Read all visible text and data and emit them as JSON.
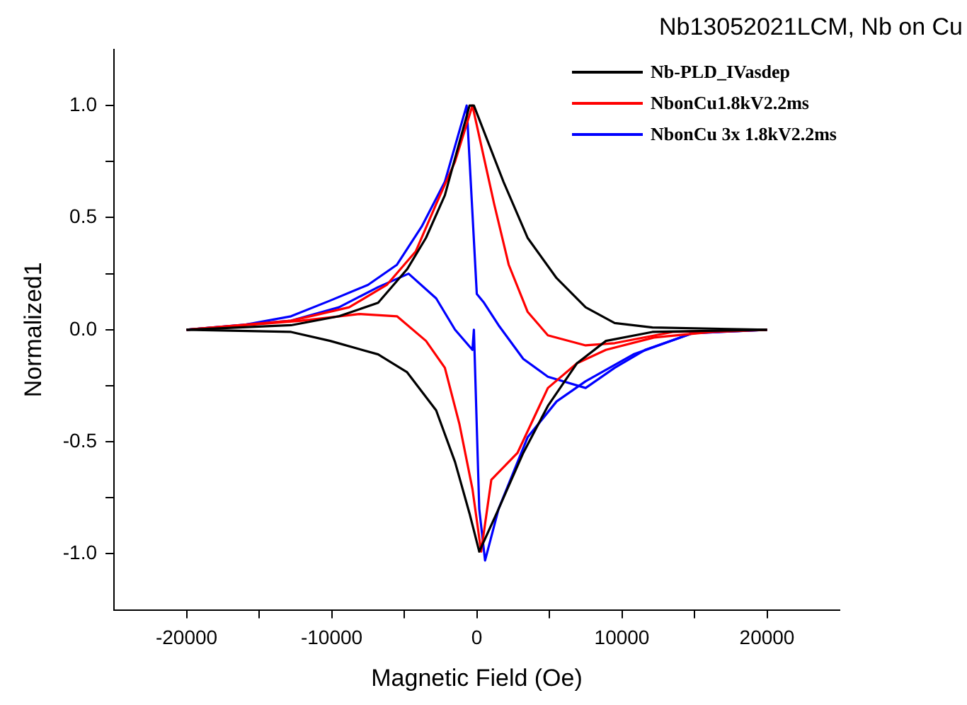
{
  "chart_data": {
    "type": "line",
    "title": "Nb13052021LCM, Nb on Cu",
    "xlabel": "Magnetic Field (Oe)",
    "ylabel": "Normalized1",
    "xlim": [
      -25000,
      25000
    ],
    "ylim": [
      -1.25,
      1.25
    ],
    "xticks": [
      -20000,
      {
        "value": -15000,
        "label": null
      },
      -10000,
      {
        "value": -5000,
        "label": null
      },
      0,
      {
        "value": 5000,
        "label": null
      },
      10000,
      {
        "value": 15000,
        "label": null
      },
      20000
    ],
    "yticks": [
      {
        "value": -1,
        "label": "-1.0"
      },
      {
        "value": -0.75,
        "label": null
      },
      {
        "value": -0.5,
        "label": "-0.5"
      },
      {
        "value": -0.25,
        "label": null
      },
      {
        "value": 0,
        "label": "0.0"
      },
      {
        "value": 0.25,
        "label": null
      },
      {
        "value": 0.5,
        "label": "0.5"
      },
      {
        "value": 0.75,
        "label": null
      },
      {
        "value": 1,
        "label": "1.0"
      }
    ],
    "grid": false,
    "legend": "top right",
    "marker": "none",
    "line_style": "solid",
    "series": [
      {
        "name": "Nb-PLD_IVasdep",
        "color": "#000000",
        "x": [
          -20000,
          -12800,
          -9500,
          -6800,
          -4800,
          -3500,
          -2200,
          -500,
          -200,
          1840,
          3500,
          5500,
          7500,
          9500,
          12100,
          20000
        ],
        "values": [
          0,
          0.02,
          0.06,
          0.12,
          0.27,
          0.41,
          0.6,
          1.0,
          1.0,
          0.66,
          0.41,
          0.23,
          0.1,
          0.03,
          0.01,
          0
        ]
      },
      {
        "color": "#000000",
        "x": [
          -20000,
          -12800,
          -10100,
          -6800,
          -4800,
          -2800,
          -1500,
          -500,
          170,
          1500,
          3200,
          4900,
          6900,
          8900,
          12100,
          20000
        ],
        "values": [
          0,
          -0.01,
          -0.05,
          -0.11,
          -0.19,
          -0.36,
          -0.59,
          -0.82,
          -0.99,
          -0.8,
          -0.55,
          -0.34,
          -0.15,
          -0.05,
          -0.01,
          0
        ]
      },
      {
        "name": "NbonCu1.8kV2.2ms",
        "color": "#ff0000",
        "x": [
          -20000,
          -12800,
          -8800,
          -6200,
          -4200,
          -2800,
          -1500,
          -300,
          1200,
          2200,
          3500,
          4900,
          7500,
          9500,
          13500,
          20000
        ],
        "values": [
          0,
          0.04,
          0.1,
          0.2,
          0.35,
          0.56,
          0.75,
          1.0,
          0.56,
          0.29,
          0.08,
          -0.025,
          -0.07,
          -0.06,
          -0.01,
          0
        ]
      },
      {
        "color": "#ff0000",
        "x": [
          -20000,
          -12100,
          -8100,
          -5500,
          -3500,
          -2200,
          -1200,
          -300,
          300,
          1000,
          2800,
          4900,
          6900,
          8900,
          12200,
          16200,
          20000
        ],
        "values": [
          0,
          0.04,
          0.07,
          0.06,
          -0.05,
          -0.17,
          -0.42,
          -0.71,
          -0.99,
          -0.67,
          -0.55,
          -0.26,
          -0.15,
          -0.09,
          -0.035,
          -0.01,
          0
        ]
      },
      {
        "name": "NbonCu 3x 1.8kV2.2ms",
        "color": "#0000ff",
        "x": [
          -20000,
          -16200,
          -12800,
          -10100,
          -7500,
          -5500,
          -3800,
          -2200,
          -700,
          0,
          500,
          1500,
          3200,
          4900,
          7500,
          9500,
          11600,
          14900,
          20000
        ],
        "values": [
          0,
          0.02,
          0.06,
          0.13,
          0.2,
          0.29,
          0.46,
          0.66,
          1.0,
          0.16,
          0.12,
          0.02,
          -0.13,
          -0.21,
          -0.26,
          -0.17,
          -0.09,
          -0.015,
          0
        ]
      },
      {
        "color": "#0000ff",
        "x": [
          -20000,
          -12800,
          -9500,
          -6800,
          -4700,
          -2800,
          -1500,
          -300,
          -200,
          170,
          570,
          1500,
          3500,
          5500,
          7500,
          10800,
          14900,
          20000
        ],
        "values": [
          0,
          0.04,
          0.1,
          0.19,
          0.25,
          0.14,
          0.0,
          -0.09,
          0.0,
          -0.8,
          -1.03,
          -0.8,
          -0.48,
          -0.32,
          -0.23,
          -0.11,
          -0.015,
          0
        ]
      }
    ]
  }
}
